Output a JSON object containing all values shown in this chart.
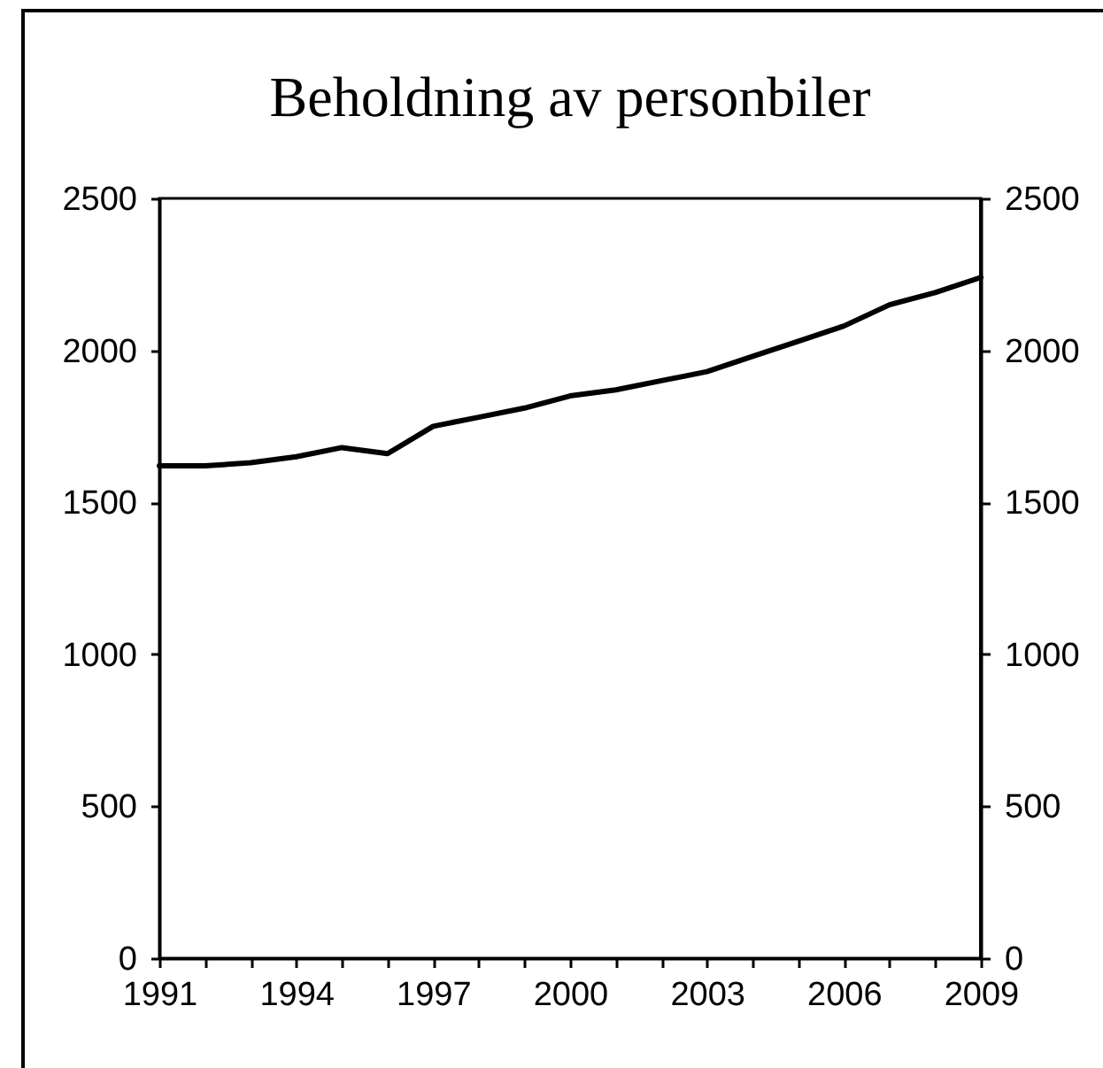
{
  "chart_data": {
    "type": "line",
    "title": "Beholdning av personbiler",
    "x": [
      1991,
      1992,
      1993,
      1994,
      1995,
      1996,
      1997,
      1998,
      1999,
      2000,
      2001,
      2002,
      2003,
      2004,
      2005,
      2006,
      2007,
      2008,
      2009
    ],
    "series": [
      {
        "color": "#000000",
        "values": [
          1620,
          1620,
          1630,
          1650,
          1680,
          1660,
          1750,
          1780,
          1810,
          1850,
          1870,
          1900,
          1930,
          1980,
          2030,
          2080,
          2150,
          2190,
          2240
        ]
      }
    ],
    "xlim": [
      1991,
      2009
    ],
    "xticks": [
      1991,
      {
        "value": 1992,
        "label": null
      },
      {
        "value": 1993,
        "label": null
      },
      1994,
      {
        "value": 1995,
        "label": null
      },
      {
        "value": 1996,
        "label": null
      },
      1997,
      {
        "value": 1998,
        "label": null
      },
      {
        "value": 1999,
        "label": null
      },
      2000,
      {
        "value": 2001,
        "label": null
      },
      {
        "value": 2002,
        "label": null
      },
      2003,
      {
        "value": 2004,
        "label": null
      },
      {
        "value": 2005,
        "label": null
      },
      2006,
      {
        "value": 2007,
        "label": null
      },
      {
        "value": 2008,
        "label": null
      },
      2009
    ],
    "ylim": [
      0,
      2500
    ],
    "yticks": [
      0,
      500,
      1000,
      1500,
      2000,
      2500
    ],
    "y2lim": [
      0,
      2500
    ],
    "y2ticks": [
      0,
      500,
      1000,
      1500,
      2000,
      2500
    ],
    "grid": false,
    "legend": false,
    "marker": "none",
    "line_style": "solid"
  }
}
